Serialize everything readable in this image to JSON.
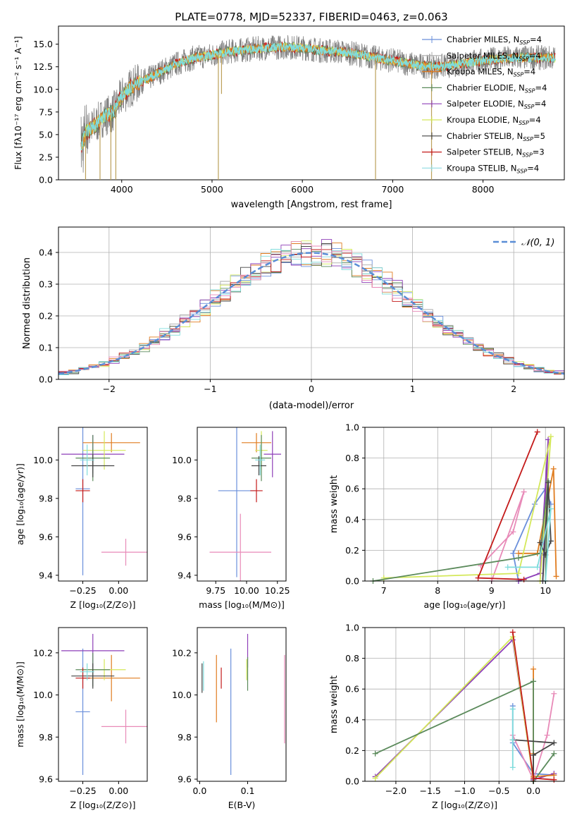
{
  "palette": [
    "#6a8fdb",
    "#aaaaaa",
    "#e07c1f",
    "#5b8a5b",
    "#8e3fb8",
    "#d4e85a",
    "#444444",
    "#c41a1a",
    "#7fdcdc",
    "#e88ab8"
  ],
  "legend": [
    {
      "name": "Chabrier MILES, N",
      "sub": "SSP",
      "rest": "=4",
      "color": "#6a8fdb"
    },
    {
      "name": "Salpeter MILES, N",
      "sub": "SSP",
      "rest": "=4",
      "color": "#aaaaaa"
    },
    {
      "name": "Kroupa MILES, N",
      "sub": "SSP",
      "rest": "=4",
      "color": "#e07c1f"
    },
    {
      "name": "Chabrier ELODIE, N",
      "sub": "SSP",
      "rest": "=4",
      "color": "#5b8a5b"
    },
    {
      "name": "Salpeter ELODIE, N",
      "sub": "SSP",
      "rest": "=4",
      "color": "#8e3fb8"
    },
    {
      "name": "Kroupa ELODIE, N",
      "sub": "SSP",
      "rest": "=4",
      "color": "#d4e85a"
    },
    {
      "name": "Chabrier STELIB, N",
      "sub": "SSP",
      "rest": "=5",
      "color": "#444444"
    },
    {
      "name": "Salpeter STELIB, N",
      "sub": "SSP",
      "rest": "=3",
      "color": "#c41a1a"
    },
    {
      "name": "Kroupa STELIB, N",
      "sub": "SSP",
      "rest": "=4",
      "color": "#9adfe6"
    }
  ],
  "chart_data": [
    {
      "type": "line",
      "title": "PLATE=0778, MJD=52337, FIBERID=0463, z=0.063",
      "xlabel": "wavelength [Angstrom, rest frame]",
      "ylabel": "Flux [fλ10⁻¹⁷ erg cm⁻² s⁻¹ A⁻¹]",
      "xlim": [
        3300,
        8900
      ],
      "ylim": [
        0,
        17
      ],
      "xticks": [
        4000,
        5000,
        6000,
        7000,
        8000
      ],
      "yticks": [
        0.0,
        2.5,
        5.0,
        7.5,
        10.0,
        12.5,
        15.0
      ],
      "continuum": [
        [
          3550,
          3.6
        ],
        [
          3600,
          5.2
        ],
        [
          3700,
          6.0
        ],
        [
          3800,
          7.0
        ],
        [
          3900,
          7.4
        ],
        [
          4000,
          9.2
        ],
        [
          4100,
          10.2
        ],
        [
          4200,
          10.8
        ],
        [
          4300,
          11.2
        ],
        [
          4400,
          11.8
        ],
        [
          4600,
          12.8
        ],
        [
          4800,
          13.5
        ],
        [
          5000,
          13.8
        ],
        [
          5200,
          14.2
        ],
        [
          5400,
          14.4
        ],
        [
          5600,
          14.6
        ],
        [
          5800,
          14.7
        ],
        [
          6000,
          14.6
        ],
        [
          6200,
          14.3
        ],
        [
          6400,
          14.2
        ],
        [
          6600,
          13.9
        ],
        [
          6800,
          13.5
        ],
        [
          7000,
          13.2
        ],
        [
          7200,
          12.8
        ],
        [
          7400,
          12.5
        ],
        [
          7600,
          12.6
        ],
        [
          7800,
          12.9
        ],
        [
          8000,
          13.2
        ],
        [
          8200,
          13.4
        ],
        [
          8400,
          13.5
        ],
        [
          8600,
          13.5
        ]
      ],
      "dips": [
        [
          3600,
          0
        ],
        [
          3760,
          0
        ],
        [
          3880,
          0
        ],
        [
          3935,
          0
        ],
        [
          5070,
          0
        ],
        [
          5105,
          9.5
        ],
        [
          6810,
          0
        ],
        [
          7430,
          0
        ]
      ],
      "grid": false,
      "legend_position": "top-right"
    },
    {
      "type": "line",
      "xlabel": "(data-model)/error",
      "ylabel": "Normed distribution",
      "xlim": [
        -2.5,
        2.5
      ],
      "ylim": [
        0,
        0.48
      ],
      "xticks": [
        -2,
        -1,
        0,
        1,
        2
      ],
      "yticks": [
        0.0,
        0.1,
        0.2,
        0.3,
        0.4
      ],
      "bin_width": 0.1,
      "legend": "𝒩(0, 1)",
      "grid": true,
      "legend_position": "top-right"
    },
    {
      "type": "scatter",
      "xlabel": "Z [log₁₀(Z/Z⊙)]",
      "ylabel": "age  [log₁₀(age/yr)]",
      "xlim": [
        -0.42,
        0.2
      ],
      "ylim": [
        9.37,
        10.17
      ],
      "xticks": [
        -0.25,
        0.0
      ],
      "xticklabels": [
        "−0.25",
        "0.00"
      ],
      "yticks": [
        9.4,
        9.6,
        9.8,
        10.0
      ],
      "points": [
        {
          "x": -0.25,
          "y": 9.85,
          "xerr": 0.05,
          "yerr": 0.45,
          "color": "#6a8fdb"
        },
        {
          "x": 0.05,
          "y": 9.52,
          "xerr": 0.17,
          "yerr": 0.07,
          "color": "#e88ab8"
        },
        {
          "x": -0.18,
          "y": 10.03,
          "xerr": 0.22,
          "yerr": 0.1,
          "color": "#8e3fb8"
        },
        {
          "x": -0.05,
          "y": 10.09,
          "xerr": 0.2,
          "yerr": 0.05,
          "color": "#e07c1f"
        },
        {
          "x": -0.1,
          "y": 10.05,
          "xerr": 0.15,
          "yerr": 0.1,
          "color": "#d4e85a"
        },
        {
          "x": -0.18,
          "y": 10.01,
          "xerr": 0.12,
          "yerr": 0.12,
          "color": "#5b8a5b"
        },
        {
          "x": -0.18,
          "y": 9.97,
          "xerr": 0.15,
          "yerr": 0.06,
          "color": "#444444"
        },
        {
          "x": -0.25,
          "y": 9.84,
          "xerr": 0.05,
          "yerr": 0.06,
          "color": "#c41a1a"
        },
        {
          "x": -0.22,
          "y": 10.0,
          "xerr": 0.05,
          "yerr": 0.08,
          "color": "#7fdcdc"
        }
      ]
    },
    {
      "type": "scatter",
      "xlabel": "mass [log₁₀(M/M⊙)]",
      "xlim": [
        9.6,
        10.32
      ],
      "ylim": [
        9.37,
        10.17
      ],
      "xticks": [
        9.75,
        10.0,
        10.25
      ],
      "xticklabels": [
        "9.75",
        "10.00",
        "10.25"
      ],
      "yticks": [
        9.4,
        9.6,
        9.8,
        10.0
      ],
      "points": [
        {
          "x": 9.92,
          "y": 9.84,
          "xerr": 0.15,
          "yerr": 0.45,
          "color": "#6a8fdb"
        },
        {
          "x": 9.95,
          "y": 9.52,
          "xerr": 0.25,
          "yerr": 0.2,
          "color": "#e88ab8"
        },
        {
          "x": 10.21,
          "y": 10.03,
          "xerr": 0.07,
          "yerr": 0.12,
          "color": "#8e3fb8"
        },
        {
          "x": 10.08,
          "y": 10.09,
          "xerr": 0.12,
          "yerr": 0.05,
          "color": "#e07c1f"
        },
        {
          "x": 10.12,
          "y": 10.05,
          "xerr": 0.05,
          "yerr": 0.1,
          "color": "#d4e85a"
        },
        {
          "x": 10.12,
          "y": 10.01,
          "xerr": 0.08,
          "yerr": 0.12,
          "color": "#5b8a5b"
        },
        {
          "x": 10.1,
          "y": 9.97,
          "xerr": 0.06,
          "yerr": 0.05,
          "color": "#444444"
        },
        {
          "x": 10.08,
          "y": 9.84,
          "xerr": 0.05,
          "yerr": 0.06,
          "color": "#c41a1a"
        },
        {
          "x": 10.11,
          "y": 10.0,
          "xerr": 0.04,
          "yerr": 0.08,
          "color": "#7fdcdc"
        }
      ]
    },
    {
      "type": "line",
      "xlabel": "age  [log₁₀(age/yr)]",
      "ylabel": "mass weight",
      "xlim": [
        6.65,
        10.35
      ],
      "ylim": [
        0,
        1.0
      ],
      "xticks": [
        7,
        8,
        9,
        10
      ],
      "yticks": [
        0.0,
        0.2,
        0.4,
        0.6,
        0.8,
        1.0
      ],
      "grid": true,
      "series": [
        {
          "color": "#6a8fdb",
          "points": [
            [
              9.5,
              0.0
            ],
            [
              9.4,
              0.18
            ],
            [
              9.8,
              0.5
            ],
            [
              10.0,
              0.6
            ],
            [
              10.1,
              0.5
            ]
          ]
        },
        {
          "color": "#e88ab8",
          "points": [
            [
              8.8,
              0.1
            ],
            [
              9.4,
              0.32
            ],
            [
              9.6,
              0.58
            ],
            [
              9.0,
              0.0
            ]
          ]
        },
        {
          "color": "#8e3fb8",
          "points": [
            [
              9.5,
              0.0
            ],
            [
              9.9,
              0.05
            ],
            [
              10.05,
              0.92
            ],
            [
              9.95,
              0.0
            ]
          ]
        },
        {
          "color": "#e07c1f",
          "points": [
            [
              9.5,
              0.18
            ],
            [
              9.85,
              0.18
            ],
            [
              10.15,
              0.73
            ],
            [
              10.2,
              0.03
            ]
          ]
        },
        {
          "color": "#d4e85a",
          "points": [
            [
              7.0,
              0.02
            ],
            [
              9.5,
              0.05
            ],
            [
              10.1,
              0.94
            ],
            [
              9.9,
              0.0
            ]
          ]
        },
        {
          "color": "#5b8a5b",
          "points": [
            [
              6.8,
              0.0
            ],
            [
              9.5,
              0.15
            ],
            [
              9.9,
              0.18
            ],
            [
              10.05,
              0.65
            ],
            [
              10.0,
              0.0
            ]
          ]
        },
        {
          "color": "#444444",
          "points": [
            [
              9.9,
              0.25
            ],
            [
              10.0,
              0.17
            ],
            [
              10.1,
              0.26
            ],
            [
              10.05,
              0.64
            ],
            [
              9.95,
              0.0
            ]
          ]
        },
        {
          "color": "#c41a1a",
          "points": [
            [
              9.6,
              0.01
            ],
            [
              8.75,
              0.02
            ],
            [
              9.85,
              0.97
            ]
          ]
        },
        {
          "color": "#7fdcdc",
          "points": [
            [
              9.3,
              0.09
            ],
            [
              9.85,
              0.09
            ],
            [
              10.1,
              0.47
            ],
            [
              10.0,
              0.0
            ]
          ]
        }
      ]
    },
    {
      "type": "scatter",
      "xlabel": "Z [log₁₀(Z/Z⊙)]",
      "ylabel": "mass [log₁₀(M/M⊙)]",
      "xlim": [
        -0.42,
        0.2
      ],
      "ylim": [
        9.59,
        10.32
      ],
      "xticks": [
        -0.25,
        0.0
      ],
      "xticklabels": [
        "−0.25",
        "0.00"
      ],
      "yticks": [
        9.6,
        9.8,
        10.0,
        10.2
      ],
      "points": [
        {
          "x": -0.25,
          "y": 9.92,
          "xerr": 0.05,
          "yerr": 0.3,
          "color": "#6a8fdb"
        },
        {
          "x": 0.05,
          "y": 9.85,
          "xerr": 0.17,
          "yerr": 0.08,
          "color": "#e88ab8"
        },
        {
          "x": -0.18,
          "y": 10.21,
          "xerr": 0.22,
          "yerr": 0.08,
          "color": "#8e3fb8"
        },
        {
          "x": -0.05,
          "y": 10.08,
          "xerr": 0.2,
          "yerr": 0.11,
          "color": "#e07c1f"
        },
        {
          "x": -0.1,
          "y": 10.12,
          "xerr": 0.15,
          "yerr": 0.05,
          "color": "#d4e85a"
        },
        {
          "x": -0.18,
          "y": 10.12,
          "xerr": 0.12,
          "yerr": 0.08,
          "color": "#5b8a5b"
        },
        {
          "x": -0.18,
          "y": 10.09,
          "xerr": 0.15,
          "yerr": 0.06,
          "color": "#444444"
        },
        {
          "x": -0.25,
          "y": 10.08,
          "xerr": 0.05,
          "yerr": 0.05,
          "color": "#c41a1a"
        },
        {
          "x": -0.22,
          "y": 10.11,
          "xerr": 0.05,
          "yerr": 0.04,
          "color": "#7fdcdc"
        }
      ]
    },
    {
      "type": "scatter",
      "xlabel": "E(B-V)",
      "xlim": [
        -0.005,
        0.18
      ],
      "ylim": [
        9.59,
        10.32
      ],
      "xticks": [
        0.0,
        0.1
      ],
      "xticklabels": [
        "0.0",
        "0.1"
      ],
      "yticks": [
        9.6,
        9.8,
        10.0,
        10.2
      ],
      "points": [
        {
          "x": 0.065,
          "y": 9.92,
          "yerr": 0.3,
          "color": "#6a8fdb"
        },
        {
          "x": 0.177,
          "y": 9.98,
          "yerr": 0.21,
          "color": "#e88ab8"
        },
        {
          "x": 0.1,
          "y": 10.21,
          "yerr": 0.08,
          "color": "#8e3fb8"
        },
        {
          "x": 0.035,
          "y": 10.03,
          "yerr": 0.16,
          "color": "#e07c1f"
        },
        {
          "x": 0.098,
          "y": 10.12,
          "yerr": 0.05,
          "color": "#d4e85a"
        },
        {
          "x": 0.1,
          "y": 10.1,
          "yerr": 0.08,
          "color": "#5b8a5b"
        },
        {
          "x": 0.005,
          "y": 10.08,
          "yerr": 0.07,
          "color": "#444444"
        },
        {
          "x": 0.045,
          "y": 10.08,
          "yerr": 0.05,
          "color": "#c41a1a"
        },
        {
          "x": 0.008,
          "y": 10.09,
          "yerr": 0.07,
          "color": "#7fdcdc"
        }
      ]
    },
    {
      "type": "line",
      "xlabel": "Z [log₁₀(Z/Z⊙)]",
      "ylabel": "mass weight",
      "xlim": [
        -2.45,
        0.45
      ],
      "ylim": [
        0,
        1.0
      ],
      "xticks": [
        -2.0,
        -1.5,
        -1.0,
        -0.5,
        0.0
      ],
      "xticklabels": [
        "−2.0",
        "−1.5",
        "−1.0",
        "−0.5",
        "0.0"
      ],
      "yticks": [
        0.0,
        0.2,
        0.4,
        0.6,
        0.8,
        1.0
      ],
      "grid": true,
      "series": [
        {
          "color": "#6a8fdb",
          "points": [
            [
              -0.3,
              0.49
            ],
            [
              -0.3,
              0.25
            ],
            [
              0.0,
              0.05
            ],
            [
              0.3,
              0.04
            ]
          ]
        },
        {
          "color": "#e88ab8",
          "points": [
            [
              0.3,
              0.57
            ],
            [
              0.2,
              0.3
            ],
            [
              0.0,
              0.01
            ],
            [
              -0.3,
              0.3
            ]
          ]
        },
        {
          "color": "#8e3fb8",
          "points": [
            [
              -2.3,
              0.03
            ],
            [
              -0.3,
              0.92
            ],
            [
              0.0,
              0.01
            ],
            [
              0.3,
              0.05
            ]
          ]
        },
        {
          "color": "#e07c1f",
          "points": [
            [
              0.0,
              0.73
            ],
            [
              0.0,
              0.18
            ],
            [
              0.0,
              0.03
            ],
            [
              0.3,
              0.04
            ]
          ]
        },
        {
          "color": "#d4e85a",
          "points": [
            [
              -2.3,
              0.02
            ],
            [
              -0.3,
              0.94
            ],
            [
              0.0,
              0.0
            ]
          ]
        },
        {
          "color": "#5b8a5b",
          "points": [
            [
              -2.3,
              0.18
            ],
            [
              0.0,
              0.65
            ],
            [
              0.0,
              0.0
            ],
            [
              0.3,
              0.18
            ]
          ]
        },
        {
          "color": "#444444",
          "points": [
            [
              -0.3,
              0.27
            ],
            [
              0.3,
              0.25
            ],
            [
              0.0,
              0.17
            ],
            [
              0.0,
              0.0
            ]
          ]
        },
        {
          "color": "#c41a1a",
          "points": [
            [
              -0.3,
              0.97
            ],
            [
              0.0,
              0.02
            ],
            [
              0.3,
              0.01
            ]
          ]
        },
        {
          "color": "#7fdcdc",
          "points": [
            [
              -0.3,
              0.47
            ],
            [
              -0.3,
              0.09
            ],
            [
              -0.3,
              0.27
            ]
          ]
        }
      ]
    }
  ]
}
